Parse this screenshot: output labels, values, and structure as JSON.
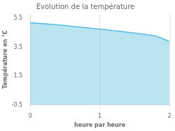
{
  "chart_data": {
    "type": "area",
    "title": "Evolution de la température",
    "x_label": "heure par heure",
    "y_label": "Température en °C",
    "x": [
      0,
      0.1,
      0.2,
      0.3,
      0.4,
      0.5,
      0.6,
      0.7,
      0.8,
      0.9,
      1.0,
      1.1,
      1.2,
      1.3,
      1.4,
      1.5,
      1.6,
      1.7,
      1.8,
      1.9,
      2.0
    ],
    "values": [
      5.2,
      5.16,
      5.12,
      5.08,
      5.04,
      5.0,
      4.95,
      4.9,
      4.85,
      4.8,
      4.75,
      4.7,
      4.65,
      4.6,
      4.54,
      4.48,
      4.42,
      4.35,
      4.28,
      4.1,
      3.9
    ],
    "color": "#55bbdd",
    "xlim": [
      0,
      2.0
    ],
    "xticks": [
      0,
      1,
      2
    ],
    "ylim": [
      -0.5,
      5.8
    ],
    "yticks": [
      -0.5,
      1.5,
      3.5,
      5.5
    ],
    "grid": "x"
  }
}
